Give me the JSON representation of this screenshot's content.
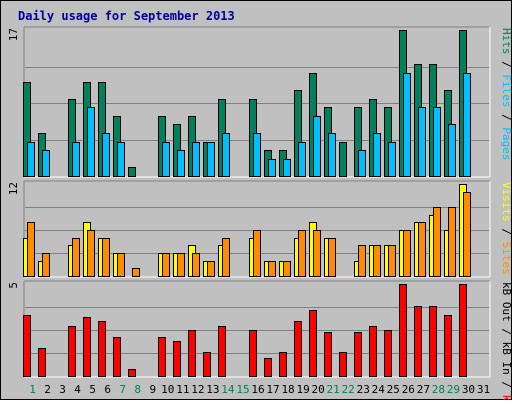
{
  "chart_data": {
    "type": "bar",
    "title": "Daily usage for September 2013",
    "categories": [
      "1",
      "2",
      "3",
      "4",
      "5",
      "6",
      "7",
      "8",
      "9",
      "10",
      "11",
      "12",
      "13",
      "14",
      "15",
      "16",
      "17",
      "18",
      "19",
      "20",
      "21",
      "22",
      "23",
      "24",
      "25",
      "26",
      "27",
      "28",
      "29",
      "30",
      "31"
    ],
    "weekend_days": [
      "1",
      "7",
      "8",
      "14",
      "15",
      "21",
      "22",
      "28",
      "29"
    ],
    "panels": [
      {
        "id": "hits",
        "ymax_label": "17",
        "ymax": 17,
        "axis_title": [
          "Pages",
          " / ",
          "Files",
          " / ",
          "Hits"
        ],
        "series": [
          {
            "name": "Hits",
            "color": "#00805c",
            "values": [
              11,
              5,
              0,
              9,
              11,
              11,
              7,
              1,
              0,
              7,
              6,
              7,
              4,
              9,
              0,
              9,
              3,
              3,
              10,
              12,
              8,
              4,
              8,
              9,
              8,
              17,
              13,
              13,
              10,
              17,
              0
            ]
          },
          {
            "name": "Files",
            "color": "#00bfff",
            "values": [
              4,
              3,
              0,
              4,
              8,
              5,
              4,
              0,
              0,
              4,
              3,
              4,
              4,
              5,
              0,
              5,
              2,
              2,
              4,
              7,
              5,
              0,
              3,
              5,
              4,
              12,
              8,
              8,
              6,
              12,
              0
            ]
          },
          {
            "name": "Pages",
            "color": "#00bfff",
            "values": [
              0,
              0,
              0,
              0,
              0,
              0,
              0,
              0,
              0,
              0,
              0,
              0,
              0,
              0,
              0,
              0,
              0,
              0,
              0,
              0,
              0,
              0,
              0,
              0,
              0,
              0,
              0,
              0,
              0,
              0,
              0
            ]
          }
        ]
      },
      {
        "id": "visits",
        "ymax_label": "12",
        "ymax": 12,
        "axis_title": [
          "Sites",
          " / ",
          "Visits"
        ],
        "series": [
          {
            "name": "Visits",
            "color": "#ffff00",
            "values": [
              5,
              2,
              0,
              4,
              7,
              5,
              3,
              0,
              0,
              3,
              3,
              4,
              2,
              4,
              0,
              5,
              2,
              2,
              5,
              7,
              5,
              0,
              2,
              4,
              4,
              6,
              7,
              8,
              6,
              12,
              0
            ]
          },
          {
            "name": "Sites",
            "color": "#ff8c00",
            "values": [
              7,
              3,
              0,
              5,
              6,
              5,
              3,
              1,
              0,
              3,
              3,
              3,
              2,
              5,
              0,
              6,
              2,
              2,
              6,
              6,
              5,
              0,
              4,
              4,
              4,
              6,
              7,
              9,
              9,
              11,
              0
            ]
          }
        ]
      },
      {
        "id": "kbytes",
        "ymax_label": "5",
        "ymax": 5,
        "axis_title": [
          "kB F",
          " / ",
          "kB In",
          " / ",
          "kB Out"
        ],
        "series": [
          {
            "name": "kB F",
            "color": "#ff0000",
            "values": [
              3.3,
              1.5,
              0,
              2.7,
              3.2,
              3.0,
              2.1,
              0.4,
              0,
              2.1,
              1.9,
              2.5,
              1.3,
              2.7,
              0,
              2.5,
              1.0,
              1.3,
              3.0,
              3.6,
              2.4,
              1.3,
              2.4,
              2.7,
              2.5,
              5.0,
              3.8,
              3.8,
              3.3,
              5.0,
              0
            ]
          }
        ]
      }
    ],
    "colors": {
      "frame": "#c0c0c0",
      "plot": "#c0c0c0",
      "title": "#0000a0",
      "day_label": "#000000",
      "weekend_label": "#00805c"
    }
  }
}
